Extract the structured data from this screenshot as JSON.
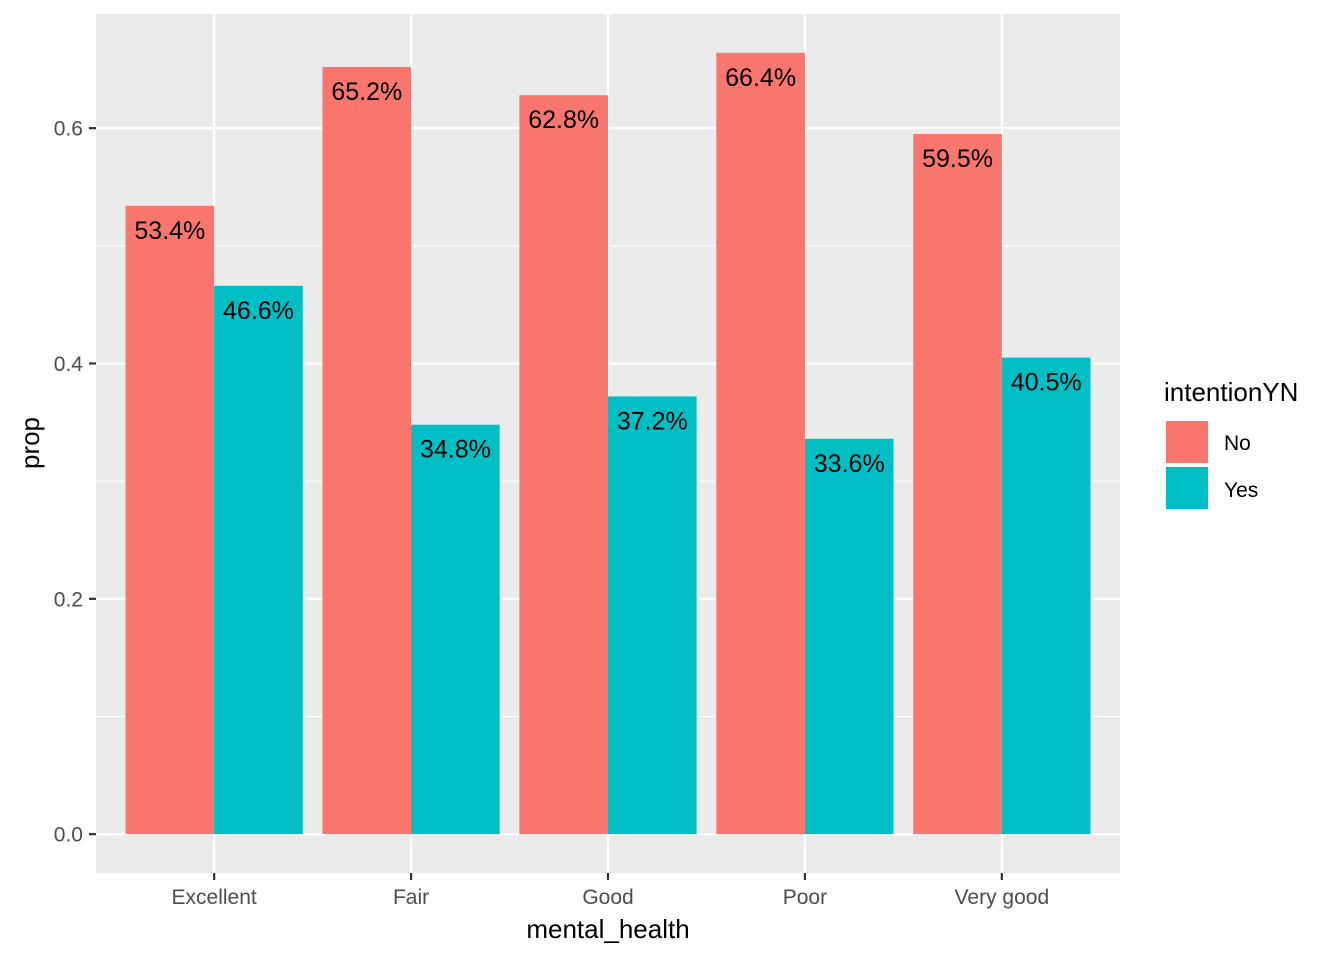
{
  "chart_data": {
    "type": "bar",
    "categories": [
      "Excellent",
      "Fair",
      "Good",
      "Poor",
      "Very good"
    ],
    "series": [
      {
        "name": "No",
        "color": "#F8766D",
        "values": [
          0.534,
          0.652,
          0.628,
          0.664,
          0.595
        ],
        "labels": [
          "53.4%",
          "65.2%",
          "62.8%",
          "66.4%",
          "59.5%"
        ]
      },
      {
        "name": "Yes",
        "color": "#00BFC4",
        "values": [
          0.466,
          0.348,
          0.372,
          0.336,
          0.405
        ],
        "labels": [
          "46.6%",
          "34.8%",
          "37.2%",
          "33.6%",
          "40.5%"
        ]
      }
    ],
    "xlabel": "mental_health",
    "ylabel": "prop",
    "ylim": [
      -0.033,
      0.697
    ],
    "yticks": [
      0.0,
      0.2,
      0.4,
      0.6
    ],
    "ytick_labels": [
      "0.0",
      "0.2",
      "0.4",
      "0.6"
    ],
    "legend": {
      "title": "intentionYN",
      "position": "right"
    },
    "grid": true,
    "panel_background": "#EBEBEB",
    "grid_color": "#FFFFFF"
  }
}
